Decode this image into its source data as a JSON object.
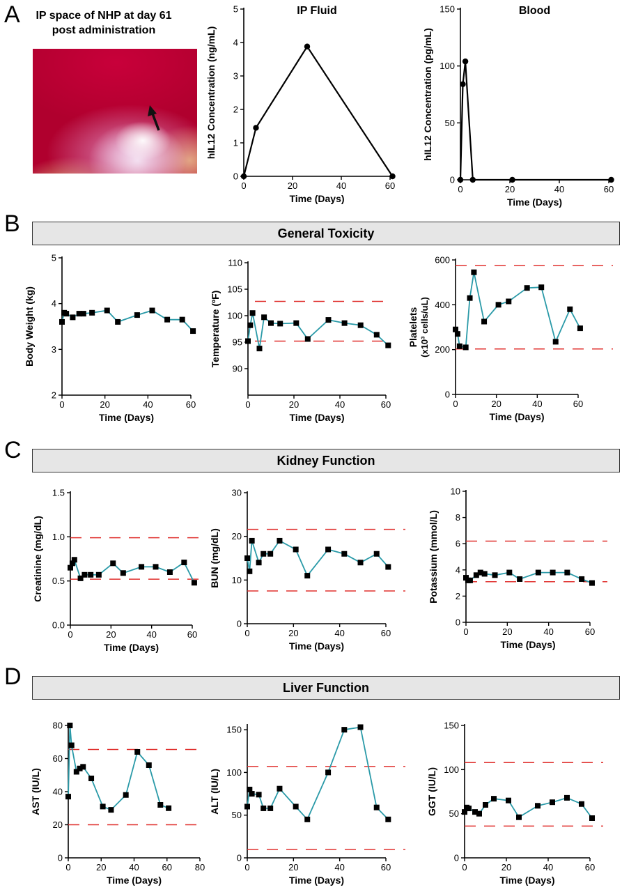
{
  "panels": [
    {
      "letter": "A",
      "title": ""
    },
    {
      "letter": "B",
      "title": "General Toxicity"
    },
    {
      "letter": "C",
      "title": "Kidney Function"
    },
    {
      "letter": "D",
      "title": "Liver Function"
    }
  ],
  "photo": {
    "title_line1": "IP space of NHP at day 61",
    "title_line2": "post administration"
  },
  "colors": {
    "series": "#2a9aa8",
    "reference": "#e0302e",
    "series_black": "#000000",
    "banner": "#e6e6e6"
  },
  "chart_data": [
    {
      "id": "ip-fluid",
      "type": "line",
      "title": "IP Fluid",
      "xlabel": "Time (Days)",
      "ylabel": "hIL12 Concentration (ng/mL)",
      "xlim": [
        0,
        60
      ],
      "ylim": [
        0,
        5
      ],
      "xticks": [
        0,
        20,
        40,
        60
      ],
      "yticks": [
        0,
        1,
        2,
        3,
        4,
        5
      ],
      "marker": "circle",
      "color": "#000000",
      "x": [
        0,
        5,
        26,
        61
      ],
      "y": [
        0,
        1.45,
        3.88,
        0
      ]
    },
    {
      "id": "blood",
      "type": "line",
      "title": "Blood",
      "xlabel": "Time (Days)",
      "ylabel": "hIL12 Concentration (pg/mL)",
      "xlim": [
        0,
        60
      ],
      "ylim": [
        0,
        150
      ],
      "xticks": [
        0,
        20,
        40,
        60
      ],
      "yticks": [
        0,
        50,
        100,
        150
      ],
      "marker": "circle",
      "color": "#000000",
      "x": [
        0,
        1,
        2,
        5,
        21,
        61
      ],
      "y": [
        0,
        84,
        104,
        0,
        0,
        0
      ]
    },
    {
      "id": "body-weight",
      "type": "line",
      "title": "",
      "xlabel": "Time (Days)",
      "ylabel": "Body Weight (kg)",
      "xlim": [
        0,
        60
      ],
      "ylim": [
        2,
        5
      ],
      "xticks": [
        0,
        20,
        40,
        60
      ],
      "yticks": [
        2,
        3,
        4,
        5
      ],
      "marker": "square",
      "color": "#2a9aa8",
      "x": [
        0,
        1,
        2,
        5,
        8,
        10,
        14,
        21,
        26,
        35,
        42,
        49,
        56,
        61
      ],
      "y": [
        3.6,
        3.8,
        3.78,
        3.7,
        3.78,
        3.78,
        3.8,
        3.85,
        3.6,
        3.75,
        3.85,
        3.65,
        3.65,
        3.4
      ]
    },
    {
      "id": "temperature",
      "type": "line",
      "title": "",
      "xlabel": "Time (Days)",
      "ylabel": "Temperature (ºF)",
      "xlim": [
        0,
        60
      ],
      "ylim": [
        85,
        110
      ],
      "xticks": [
        0,
        20,
        40,
        60
      ],
      "yticks": [
        90,
        95,
        100,
        105,
        110
      ],
      "marker": "square",
      "color": "#2a9aa8",
      "reference_lines": [
        95.2,
        102.7
      ],
      "x": [
        0,
        1,
        2,
        5,
        7,
        10,
        14,
        21,
        26,
        35,
        42,
        49,
        56,
        61
      ],
      "y": [
        95.2,
        98.2,
        100.5,
        93.8,
        99.7,
        98.6,
        98.5,
        98.6,
        95.6,
        99.2,
        98.6,
        98.2,
        96.4,
        94.4
      ]
    },
    {
      "id": "platelets",
      "type": "line",
      "title": "",
      "xlabel": "Time (Days)",
      "ylabel": "Platelets",
      "ylabel2": "(x10³ cells/uL)",
      "xlim": [
        0,
        60
      ],
      "ylim": [
        0,
        600
      ],
      "xticks": [
        0,
        20,
        40,
        60
      ],
      "yticks": [
        0,
        200,
        400,
        600
      ],
      "marker": "square",
      "color": "#2a9aa8",
      "reference_lines": [
        203,
        575
      ],
      "x": [
        0,
        1,
        2,
        5,
        7,
        9,
        14,
        21,
        26,
        35,
        42,
        49,
        56,
        61
      ],
      "y": [
        290,
        270,
        215,
        210,
        430,
        545,
        325,
        400,
        415,
        475,
        478,
        235,
        380,
        295
      ]
    },
    {
      "id": "creatinine",
      "type": "line",
      "title": "",
      "xlabel": "Time (Days)",
      "ylabel": "Creatinine (mg/dL)",
      "xlim": [
        0,
        60
      ],
      "ylim": [
        0,
        1.5
      ],
      "xticks": [
        0,
        20,
        40,
        60
      ],
      "yticks": [
        0.0,
        0.5,
        1.0,
        1.5
      ],
      "ytick_labels": [
        "0.0",
        "0.5",
        "1.0",
        "1.5"
      ],
      "marker": "square",
      "color": "#2a9aa8",
      "reference_lines": [
        0.52,
        0.99
      ],
      "x": [
        0,
        1,
        2,
        5,
        7,
        10,
        14,
        21,
        26,
        35,
        42,
        49,
        56,
        61
      ],
      "y": [
        0.65,
        0.7,
        0.74,
        0.53,
        0.57,
        0.57,
        0.57,
        0.7,
        0.59,
        0.66,
        0.66,
        0.6,
        0.71,
        0.48
      ]
    },
    {
      "id": "bun",
      "type": "line",
      "title": "",
      "xlabel": "Time (Days)",
      "ylabel": "BUN (mg/dL)",
      "xlim": [
        0,
        60
      ],
      "ylim": [
        0,
        30
      ],
      "xticks": [
        0,
        20,
        40,
        60
      ],
      "yticks": [
        0,
        10,
        20,
        30
      ],
      "marker": "square",
      "color": "#2a9aa8",
      "reference_lines": [
        7.5,
        21.6
      ],
      "x": [
        0,
        1,
        2,
        5,
        7,
        10,
        14,
        21,
        26,
        35,
        42,
        49,
        56,
        61
      ],
      "y": [
        15,
        12,
        19,
        14,
        16,
        16,
        19,
        17,
        11,
        17,
        16,
        14,
        16,
        13
      ]
    },
    {
      "id": "potassium",
      "type": "line",
      "title": "",
      "xlabel": "Time (Days)",
      "ylabel": "Potassium (mmol/L)",
      "xlim": [
        0,
        60
      ],
      "ylim": [
        0,
        10
      ],
      "xticks": [
        0,
        20,
        40,
        60
      ],
      "yticks": [
        0,
        2,
        4,
        6,
        8,
        10
      ],
      "marker": "square",
      "color": "#2a9aa8",
      "reference_lines": [
        3.1,
        6.2
      ],
      "x": [
        0,
        1,
        2,
        5,
        7,
        9,
        14,
        21,
        26,
        35,
        42,
        49,
        56,
        61
      ],
      "y": [
        3.4,
        3.2,
        3.2,
        3.6,
        3.8,
        3.7,
        3.6,
        3.8,
        3.3,
        3.8,
        3.8,
        3.8,
        3.3,
        3.0
      ]
    },
    {
      "id": "ast",
      "type": "line",
      "title": "",
      "xlabel": "Time (Days)",
      "ylabel": "AST (IU/L)",
      "xlim": [
        0,
        80
      ],
      "ylim": [
        0,
        80
      ],
      "xticks": [
        0,
        20,
        40,
        60,
        80
      ],
      "yticks": [
        0,
        20,
        40,
        60,
        80
      ],
      "marker": "square",
      "color": "#2a9aa8",
      "reference_lines": [
        20,
        65.5
      ],
      "x": [
        0,
        1,
        2,
        5,
        7,
        9,
        14,
        21,
        26,
        35,
        42,
        49,
        56,
        61
      ],
      "y": [
        37,
        80,
        68,
        52,
        54,
        55,
        48,
        31,
        29,
        38,
        64,
        56,
        32,
        30
      ]
    },
    {
      "id": "alt",
      "type": "line",
      "title": "",
      "xlabel": "Time (Days)",
      "ylabel": "ALT (IU/L)",
      "xlim": [
        0,
        60
      ],
      "ylim": [
        0,
        155
      ],
      "xticks": [
        0,
        20,
        40,
        60
      ],
      "yticks": [
        0,
        50,
        100,
        150
      ],
      "marker": "square",
      "color": "#2a9aa8",
      "reference_lines": [
        10,
        107
      ],
      "x": [
        0,
        1,
        2,
        5,
        7,
        10,
        14,
        21,
        26,
        35,
        42,
        49,
        56,
        61
      ],
      "y": [
        60,
        80,
        75,
        74,
        58,
        58,
        81,
        60,
        45,
        100,
        150,
        153,
        59,
        45
      ]
    },
    {
      "id": "ggt",
      "type": "line",
      "title": "",
      "xlabel": "Time (Days)",
      "ylabel": "GGT (IU/L)",
      "xlim": [
        0,
        60
      ],
      "ylim": [
        0,
        150
      ],
      "xticks": [
        0,
        20,
        40,
        60
      ],
      "yticks": [
        0,
        50,
        100,
        150
      ],
      "marker": "square",
      "color": "#2a9aa8",
      "reference_lines": [
        36,
        108
      ],
      "x": [
        0,
        1,
        2,
        5,
        7,
        10,
        14,
        21,
        26,
        35,
        42,
        49,
        56,
        61
      ],
      "y": [
        52,
        57,
        56,
        52,
        50,
        60,
        67,
        65,
        46,
        59,
        63,
        68,
        61,
        45
      ]
    }
  ]
}
